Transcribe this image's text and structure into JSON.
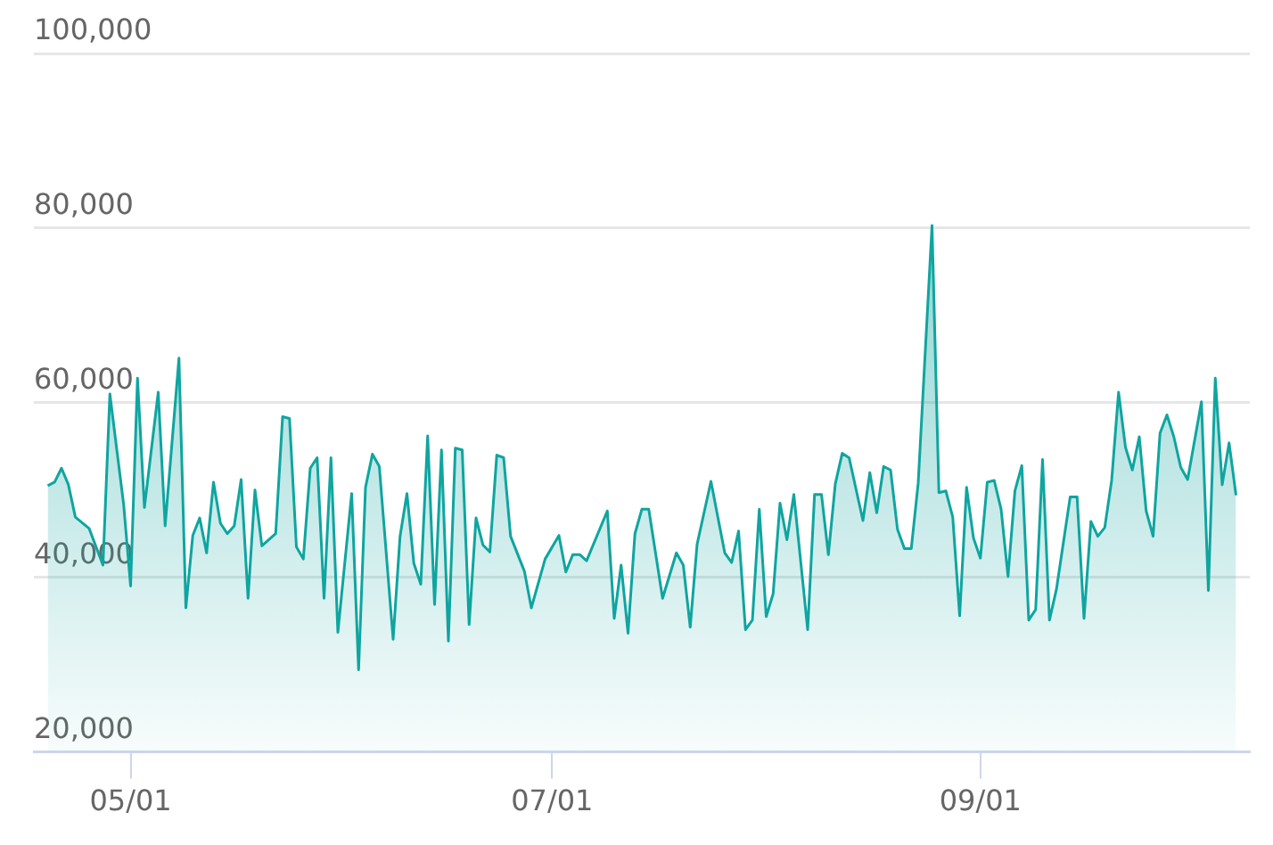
{
  "chart_data": {
    "type": "area",
    "x": [
      "--04-19",
      "--04-20",
      "--04-21",
      "--04-22",
      "--04-23",
      "--04-25",
      "--04-26",
      "--04-27",
      "--04-28",
      "--04-30",
      "--05-01",
      "--05-02",
      "--05-03",
      "--05-05",
      "--05-06",
      "--05-08",
      "--05-09",
      "--05-10",
      "--05-11",
      "--05-12",
      "--05-13",
      "--05-14",
      "--05-15",
      "--05-16",
      "--05-17",
      "--05-18",
      "--05-19",
      "--05-20",
      "--05-22",
      "--05-23",
      "--05-24",
      "--05-25",
      "--05-26",
      "--05-27",
      "--05-28",
      "--05-29",
      "--05-30",
      "--05-31",
      "--06-02",
      "--06-03",
      "--06-04",
      "--06-05",
      "--06-06",
      "--06-08",
      "--06-09",
      "--06-10",
      "--06-11",
      "--06-12",
      "--06-13",
      "--06-14",
      "--06-15",
      "--06-16",
      "--06-17",
      "--06-18",
      "--06-19",
      "--06-20",
      "--06-21",
      "--06-22",
      "--06-23",
      "--06-24",
      "--06-25",
      "--06-27",
      "--06-28",
      "--06-30",
      "--07-02",
      "--07-03",
      "--07-04",
      "--07-05",
      "--07-06",
      "--07-09",
      "--07-10",
      "--07-11",
      "--07-12",
      "--07-13",
      "--07-14",
      "--07-15",
      "--07-17",
      "--07-19",
      "--07-20",
      "--07-21",
      "--07-22",
      "--07-24",
      "--07-26",
      "--07-27",
      "--07-28",
      "--07-29",
      "--07-30",
      "--07-31",
      "--08-01",
      "--08-02",
      "--08-03",
      "--08-04",
      "--08-05",
      "--08-07",
      "--08-08",
      "--08-09",
      "--08-10",
      "--08-11",
      "--08-12",
      "--08-13",
      "--08-15",
      "--08-16",
      "--08-17",
      "--08-18",
      "--08-19",
      "--08-20",
      "--08-21",
      "--08-22",
      "--08-23",
      "--08-25",
      "--08-26",
      "--08-27",
      "--08-28",
      "--08-29",
      "--08-30",
      "--08-31",
      "--09-01",
      "--09-02",
      "--09-03",
      "--09-04",
      "--09-05",
      "--09-06",
      "--09-07",
      "--09-08",
      "--09-09",
      "--09-10",
      "--09-11",
      "--09-12",
      "--09-14",
      "--09-15",
      "--09-16",
      "--09-17",
      "--09-18",
      "--09-19",
      "--09-20",
      "--09-21",
      "--09-22",
      "--09-23",
      "--09-24",
      "--09-25",
      "--09-26",
      "--09-27",
      "--09-28",
      "--09-29",
      "--09-30",
      "--10-01",
      "--10-03",
      "--10-04",
      "--10-05",
      "--10-06",
      "--10-07",
      "--10-08"
    ],
    "series": [
      {
        "color": "#0fa5a0",
        "values": [
          50500,
          50900,
          52500,
          50600,
          46900,
          45600,
          43500,
          41400,
          61000,
          48300,
          39000,
          62800,
          48000,
          61200,
          45900,
          65100,
          36500,
          44800,
          46800,
          42800,
          50900,
          46200,
          45000,
          45900,
          51200,
          37600,
          50000,
          43600,
          45000,
          58400,
          58200,
          43500,
          42100,
          52500,
          53700,
          37600,
          53700,
          33700,
          49600,
          29400,
          50300,
          54100,
          52700,
          32900,
          44700,
          49600,
          41600,
          39200,
          56200,
          36900,
          54600,
          32700,
          54800,
          54600,
          34600,
          46800,
          43700,
          42900,
          54000,
          53700,
          44700,
          40700,
          36500,
          42100,
          44800,
          40600,
          42600,
          42600,
          41900,
          47600,
          35300,
          41400,
          33600,
          45000,
          47800,
          47800,
          37600,
          42800,
          41400,
          34300,
          43800,
          51000,
          42800,
          41700,
          45300,
          34000,
          35100,
          47800,
          35500,
          38100,
          48500,
          44300,
          49500,
          34000,
          49500,
          49500,
          42600,
          50700,
          54200,
          53700,
          46500,
          52000,
          47400,
          52700,
          52300,
          45500,
          43300,
          43300,
          50800,
          80300,
          49700,
          49900,
          46900,
          35600,
          50300,
          44500,
          42200,
          50900,
          51100,
          47800,
          40100,
          49900,
          52800,
          35100,
          36300,
          53500,
          35100,
          38600,
          49200,
          49200,
          35300,
          46400,
          44700,
          45700,
          51100,
          61200,
          54900,
          52300,
          56100,
          47600,
          44700,
          56500,
          58600,
          56100,
          52600,
          51200,
          60100,
          38500,
          62800,
          50600,
          55400,
          49400
        ]
      }
    ],
    "xlim": [
      "--04-17",
      "--10-10"
    ],
    "xticks": [
      {
        "value": "--05-01",
        "label": "05/01"
      },
      {
        "value": "--07-01",
        "label": "07/01"
      },
      {
        "value": "--09-01",
        "label": "09/01"
      }
    ],
    "ylim": [
      20000,
      100000
    ],
    "yticks": [
      {
        "value": 20000,
        "label": "20,000"
      },
      {
        "value": 40000,
        "label": "40,000"
      },
      {
        "value": 60000,
        "label": "60,000"
      },
      {
        "value": 80000,
        "label": "80,000"
      },
      {
        "value": 100000,
        "label": "100,000"
      }
    ],
    "grid": "y",
    "legend": false,
    "marker": "none",
    "line_style": "solid"
  }
}
